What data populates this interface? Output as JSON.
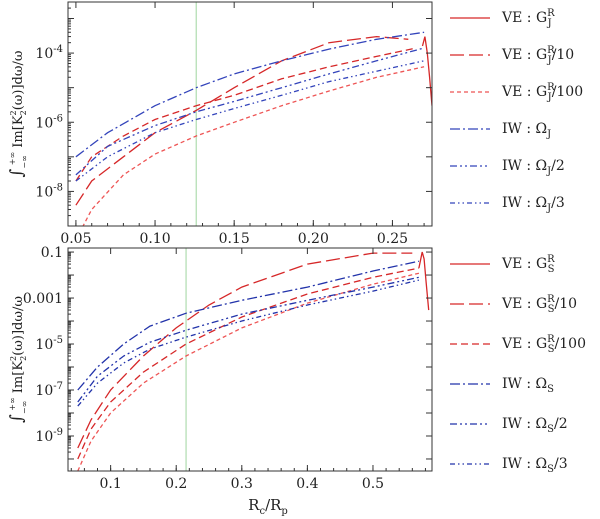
{
  "chart_data": [
    {
      "type": "line",
      "title": "",
      "xlabel": "",
      "ylabel": "∫₋∞⁺∞ Im[K₂²(ω)]dω/ω",
      "yscale": "log",
      "xlim": [
        0.045,
        0.275
      ],
      "ylim": [
        1e-09,
        0.003
      ],
      "vline": 0.126,
      "x_ticks": [
        {
          "v": 0.05,
          "label": "0.05"
        },
        {
          "v": 0.1,
          "label": "0.10"
        },
        {
          "v": 0.15,
          "label": "0.15"
        },
        {
          "v": 0.2,
          "label": "0.20"
        },
        {
          "v": 0.25,
          "label": "0.25"
        }
      ],
      "y_ticks": [
        {
          "v": 1e-08,
          "base": "10",
          "exp": "-8"
        },
        {
          "v": 1e-06,
          "base": "10",
          "exp": "-6"
        },
        {
          "v": 0.0001,
          "base": "10",
          "exp": "-4"
        }
      ],
      "series": [
        {
          "label": "VE : G_J^R",
          "color": "#d62728",
          "style": "solid",
          "x": [
            0.269,
            0.2705,
            0.272,
            0.2735,
            0.275
          ],
          "y": [
            0.00016,
            0.0003,
            0.0001,
            2e-05,
            3e-06
          ]
        },
        {
          "label": "VE : G_J^R/10",
          "color": "#d62728",
          "style": "long",
          "x": [
            0.05,
            0.06,
            0.08,
            0.1,
            0.126,
            0.15,
            0.18,
            0.21,
            0.24,
            0.26
          ],
          "y": [
            4e-09,
            2e-08,
            1e-07,
            5e-07,
            2.2e-06,
            1e-05,
            6e-05,
            0.0002,
            0.0003,
            0.00025
          ]
        },
        {
          "label": "VE : G_J^R/100",
          "color": "#d62728",
          "style": "dash",
          "x": [
            0.05,
            0.06,
            0.08,
            0.1,
            0.126,
            0.15,
            0.18,
            0.21,
            0.24,
            0.265
          ],
          "y": [
            2e-08,
            1e-07,
            4e-07,
            1.2e-06,
            3e-06,
            6e-06,
            1.8e-05,
            4e-05,
            8e-05,
            0.00014
          ]
        },
        {
          "label": "VE : G_J^R/100",
          "color": "#ee5555",
          "style": "short",
          "x": [
            0.05,
            0.06,
            0.08,
            0.1,
            0.126,
            0.15,
            0.18,
            0.21,
            0.24,
            0.27
          ],
          "y": [
            4e-10,
            3e-09,
            3e-08,
            1.2e-07,
            4e-07,
            1e-06,
            3e-06,
            8e-06,
            2e-05,
            4e-05
          ]
        },
        {
          "label": "IW : Ω_J",
          "color": "#3344bb",
          "style": "dashdot",
          "x": [
            0.05,
            0.07,
            0.1,
            0.126,
            0.15,
            0.18,
            0.21,
            0.24,
            0.27
          ],
          "y": [
            1e-07,
            5e-07,
            3e-06,
            1e-05,
            2.5e-05,
            6e-05,
            0.00013,
            0.00025,
            0.0004
          ]
        },
        {
          "label": "IW : Ω_J/2",
          "color": "#3344bb",
          "style": "dashdot2",
          "x": [
            0.05,
            0.07,
            0.1,
            0.126,
            0.15,
            0.18,
            0.21,
            0.24,
            0.27
          ],
          "y": [
            3e-08,
            2e-07,
            8e-07,
            2e-06,
            4e-06,
            1e-05,
            2.5e-05,
            6e-05,
            0.00014
          ]
        },
        {
          "label": "IW : Ω_J/3",
          "color": "#3344bb",
          "style": "dashdotdot",
          "x": [
            0.05,
            0.07,
            0.1,
            0.126,
            0.15,
            0.18,
            0.21,
            0.24,
            0.27
          ],
          "y": [
            2e-08,
            1e-07,
            5e-07,
            1.2e-06,
            2.5e-06,
            6e-06,
            1.5e-05,
            3e-05,
            6e-05
          ]
        }
      ]
    },
    {
      "type": "line",
      "title": "",
      "xlabel": "R_c/R_p",
      "ylabel": "∫₋∞⁺∞ Im[K₂²(ω)]dω/ω",
      "yscale": "log",
      "xlim": [
        0.035,
        0.59
      ],
      "ylim": [
        3e-11,
        0.15
      ],
      "vline": 0.215,
      "x_ticks": [
        {
          "v": 0.1,
          "label": "0.1"
        },
        {
          "v": 0.2,
          "label": "0.2"
        },
        {
          "v": 0.3,
          "label": "0.3"
        },
        {
          "v": 0.4,
          "label": "0.4"
        },
        {
          "v": 0.5,
          "label": "0.5"
        }
      ],
      "y_ticks": [
        {
          "v": 1e-09,
          "label": "",
          "base": "10",
          "exp": "-9"
        },
        {
          "v": 1e-07,
          "label": "",
          "base": "10",
          "exp": "-7"
        },
        {
          "v": 1e-05,
          "label": "",
          "base": "10",
          "exp": "-5"
        },
        {
          "v": 0.001,
          "label": "0.001"
        },
        {
          "v": 0.1,
          "label": "0.1"
        }
      ],
      "series": [
        {
          "label": "VE : G_S^R",
          "color": "#d62728",
          "style": "solid",
          "x": [
            0.57,
            0.575,
            0.578,
            0.581,
            0.585
          ],
          "y": [
            0.02,
            0.1,
            0.05,
            0.005,
            0.0003
          ]
        },
        {
          "label": "VE : G_S^R/10",
          "color": "#d62728",
          "style": "long",
          "x": [
            0.05,
            0.07,
            0.1,
            0.15,
            0.2,
            0.25,
            0.3,
            0.4,
            0.5,
            0.56
          ],
          "y": [
            3e-10,
            5e-09,
            1e-07,
            3e-06,
            5e-05,
            0.0005,
            0.003,
            0.03,
            0.09,
            0.09
          ]
        },
        {
          "label": "VE : G_S^R/100",
          "color": "#d62728",
          "style": "dash",
          "x": [
            0.05,
            0.07,
            0.1,
            0.15,
            0.215,
            0.3,
            0.4,
            0.5,
            0.57
          ],
          "y": [
            1e-10,
            2e-09,
            3e-08,
            6e-07,
            1e-05,
            0.00015,
            0.0015,
            0.008,
            0.02
          ]
        },
        {
          "label": "VE : G_S^R/100",
          "color": "#ee5555",
          "style": "short",
          "x": [
            0.05,
            0.07,
            0.1,
            0.15,
            0.215,
            0.3,
            0.4,
            0.5,
            0.57
          ],
          "y": [
            3e-11,
            6e-10,
            1e-08,
            2e-07,
            3e-06,
            5e-05,
            0.0006,
            0.004,
            0.012
          ]
        },
        {
          "label": "IW : Ω_S",
          "color": "#2233aa",
          "style": "dashdot",
          "x": [
            0.05,
            0.08,
            0.12,
            0.16,
            0.215,
            0.3,
            0.4,
            0.5,
            0.57
          ],
          "y": [
            1e-07,
            1e-06,
            1e-05,
            6e-05,
            0.00022,
            0.0008,
            0.003,
            0.015,
            0.04
          ]
        },
        {
          "label": "IW : Ω_S/2",
          "color": "#2233aa",
          "style": "dashdot2",
          "x": [
            0.05,
            0.08,
            0.12,
            0.16,
            0.215,
            0.3,
            0.4,
            0.5,
            0.57
          ],
          "y": [
            3e-08,
            4e-07,
            3e-06,
            1.2e-05,
            4e-05,
            0.0002,
            0.0008,
            0.003,
            0.008
          ]
        },
        {
          "label": "IW : Ω_S/3",
          "color": "#2233aa",
          "style": "dashdotdot",
          "x": [
            0.05,
            0.08,
            0.12,
            0.16,
            0.215,
            0.3,
            0.4,
            0.5,
            0.57
          ],
          "y": [
            2e-08,
            2e-07,
            1.5e-06,
            6e-06,
            2e-05,
            0.0001,
            0.0005,
            0.002,
            0.006
          ]
        }
      ]
    }
  ],
  "legends": [
    [
      {
        "lhs": "VE",
        "rhs": "G",
        "sub": "J",
        "sup": "R",
        "tail": "",
        "style": "solid",
        "color": "#d62728"
      },
      {
        "lhs": "VE",
        "rhs": "G",
        "sub": "J",
        "sup": "R",
        "tail": "/10",
        "style": "long",
        "color": "#d62728"
      },
      {
        "lhs": "VE",
        "rhs": "G",
        "sub": "J",
        "sup": "R",
        "tail": "/100",
        "style": "short",
        "color": "#ee5555"
      },
      {
        "lhs": "IW",
        "rhs": "Ω",
        "sub": "J",
        "sup": "",
        "tail": "",
        "style": "dashdot",
        "color": "#3344bb"
      },
      {
        "lhs": "IW",
        "rhs": "Ω",
        "sub": "J",
        "sup": "",
        "tail": "/2",
        "style": "dashdot2",
        "color": "#3344bb"
      },
      {
        "lhs": "IW",
        "rhs": "Ω",
        "sub": "J",
        "sup": "",
        "tail": "/3",
        "style": "dashdotdot",
        "color": "#3344bb"
      }
    ],
    [
      {
        "lhs": "VE",
        "rhs": "G",
        "sub": "S",
        "sup": "R",
        "tail": "",
        "style": "solid",
        "color": "#d62728"
      },
      {
        "lhs": "VE",
        "rhs": "G",
        "sub": "S",
        "sup": "R",
        "tail": "/10",
        "style": "long",
        "color": "#d62728"
      },
      {
        "lhs": "VE",
        "rhs": "G",
        "sub": "S",
        "sup": "R",
        "tail": "/100",
        "style": "dash",
        "color": "#d62728"
      },
      {
        "lhs": "IW",
        "rhs": "Ω",
        "sub": "S",
        "sup": "",
        "tail": "",
        "style": "dashdot",
        "color": "#2233aa"
      },
      {
        "lhs": "IW",
        "rhs": "Ω",
        "sub": "S",
        "sup": "",
        "tail": "/2",
        "style": "dashdot2",
        "color": "#2233aa"
      },
      {
        "lhs": "IW",
        "rhs": "Ω",
        "sub": "S",
        "sup": "",
        "tail": "/3",
        "style": "dashdotdot",
        "color": "#2233aa"
      }
    ]
  ],
  "colors": {
    "axis": "#333333",
    "vline": "#9fd49f"
  }
}
